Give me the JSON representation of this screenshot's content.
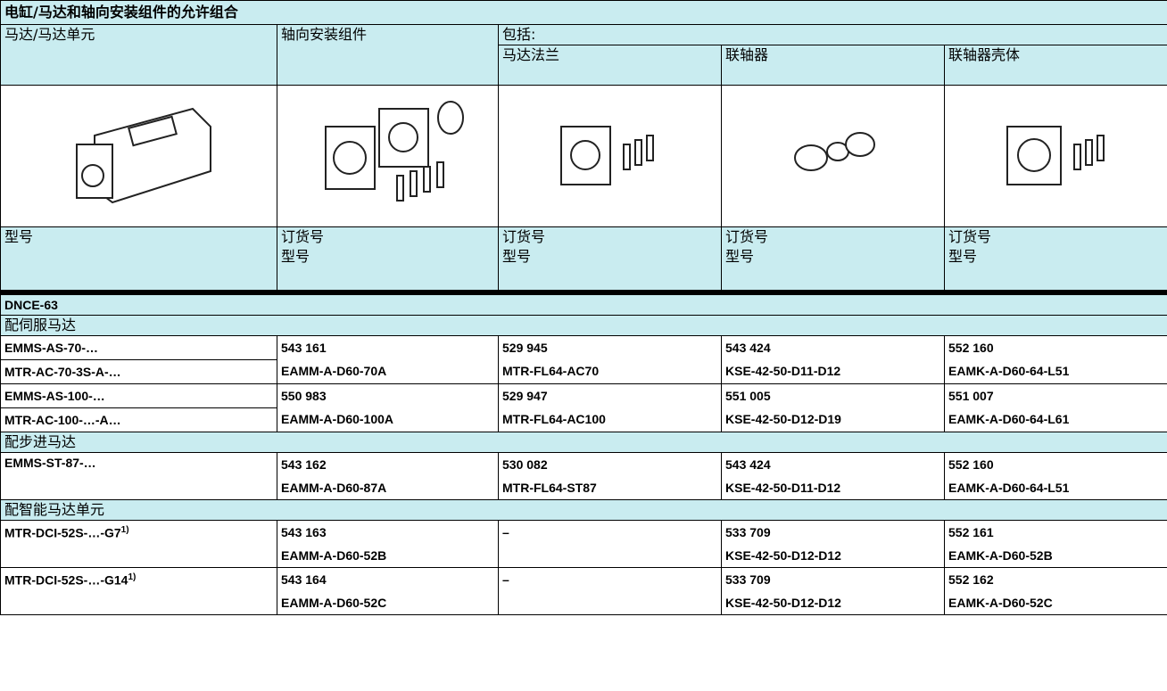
{
  "title": "电缸/马达和轴向安装组件的允许组合",
  "header": {
    "motor": "马达/马达单元",
    "axial": "轴向安装组件",
    "includes": "包括:",
    "flange": "马达法兰",
    "coupling": "联轴器",
    "housing": "联轴器壳体"
  },
  "type_header": {
    "type": "型号",
    "cols": [
      [
        "订货号",
        "型号"
      ],
      [
        "订货号",
        "型号"
      ],
      [
        "订货号",
        "型号"
      ],
      [
        "订货号",
        "型号"
      ]
    ]
  },
  "section": "DNCE-63",
  "groups": [
    {
      "label": "配伺服马达",
      "entries": [
        {
          "motor": [
            "EMMS-AS-70-…",
            "MTR-AC-70-3S-A-…"
          ],
          "cells": [
            [
              "543 161",
              "EAMM-A-D60-70A"
            ],
            [
              "529 945",
              "MTR-FL64-AC70"
            ],
            [
              "543 424",
              "KSE-42-50-D11-D12"
            ],
            [
              "552 160",
              "EAMK-A-D60-64-L51"
            ]
          ]
        },
        {
          "motor": [
            "EMMS-AS-100-…",
            "MTR-AC-100-…-A…"
          ],
          "cells": [
            [
              "550 983",
              "EAMM-A-D60-100A"
            ],
            [
              "529 947",
              "MTR-FL64-AC100"
            ],
            [
              "551 005",
              "KSE-42-50-D12-D19"
            ],
            [
              "551 007",
              "EAMK-A-D60-64-L61"
            ]
          ]
        }
      ]
    },
    {
      "label": "配步进马达",
      "entries": [
        {
          "motor": [
            "EMMS-ST-87-…"
          ],
          "cells": [
            [
              "543 162",
              "EAMM-A-D60-87A"
            ],
            [
              "530 082",
              "MTR-FL64-ST87"
            ],
            [
              "543 424",
              "KSE-42-50-D11-D12"
            ],
            [
              "552 160",
              "EAMK-A-D60-64-L51"
            ]
          ]
        }
      ]
    },
    {
      "label": "配智能马达单元",
      "entries": [
        {
          "motor": [
            "MTR-DCI-52S-…-G7"
          ],
          "note": "1)",
          "cells": [
            [
              "543 163",
              "EAMM-A-D60-52B"
            ],
            [
              "–"
            ],
            [
              "533 709",
              "KSE-42-50-D12-D12"
            ],
            [
              "552 161",
              "EAMK-A-D60-52B"
            ]
          ]
        },
        {
          "motor": [
            "MTR-DCI-52S-…-G14"
          ],
          "note": "1)",
          "cells": [
            [
              "543 164",
              "EAMM-A-D60-52C"
            ],
            [
              "–"
            ],
            [
              "533 709",
              "KSE-42-50-D12-D12"
            ],
            [
              "552 162",
              "EAMK-A-D60-52C"
            ]
          ]
        }
      ]
    }
  ]
}
